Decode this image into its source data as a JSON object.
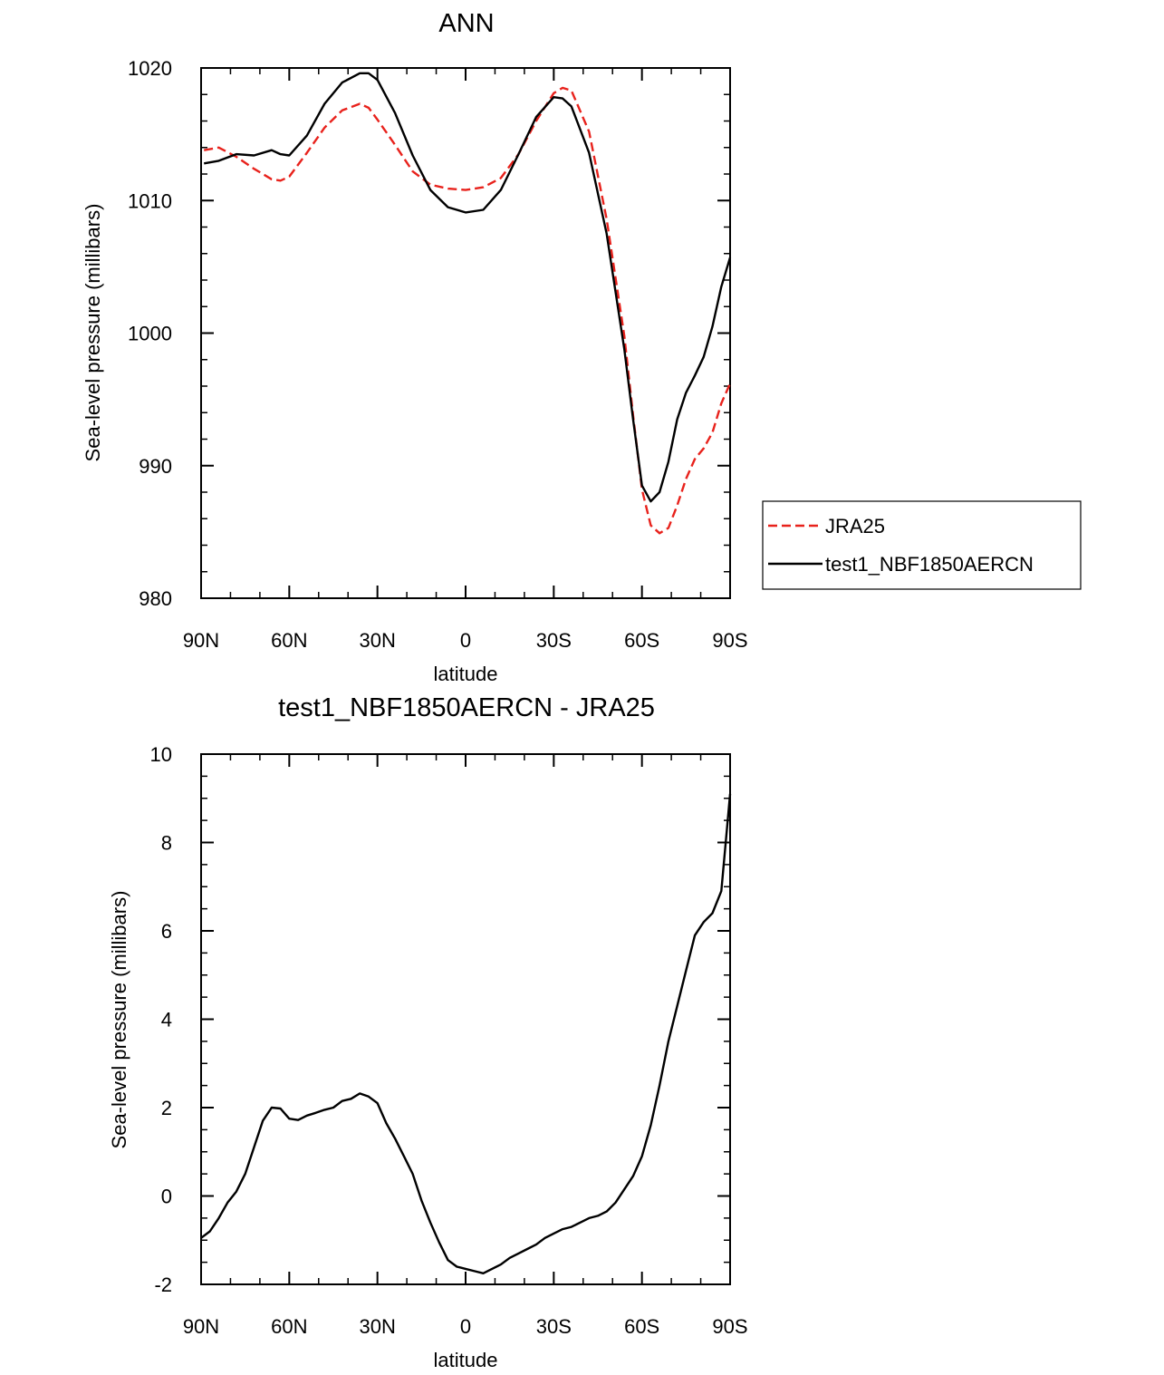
{
  "colors": {
    "jra": "#e8221c",
    "model": "#000000",
    "background": "#ffffff"
  },
  "chart_data": [
    {
      "type": "line",
      "title": "ANN",
      "xlabel": "latitude",
      "ylabel": "Sea-level pressure (millibars)",
      "xlim": [
        90,
        -90
      ],
      "ylim": [
        980,
        1020
      ],
      "x_ticks": [
        90,
        60,
        30,
        0,
        -30,
        -60,
        -90
      ],
      "x_tick_labels": [
        "90N",
        "60N",
        "30N",
        "0",
        "30S",
        "60S",
        "90S"
      ],
      "y_ticks": [
        980,
        990,
        1000,
        1010,
        1020
      ],
      "y_tick_labels": [
        "980",
        "990",
        "1000",
        "1010",
        "1020"
      ],
      "legend": {
        "position": "right",
        "entries": [
          "JRA25",
          "test1_NBF1850AERCN"
        ]
      },
      "series": [
        {
          "name": "JRA25",
          "style": "dashed",
          "color": "#e8221c",
          "x": [
            89,
            84,
            78,
            72,
            66,
            63,
            60,
            54,
            48,
            42,
            36,
            33,
            30,
            24,
            18,
            12,
            6,
            0,
            -6,
            -12,
            -18,
            -24,
            -30,
            -33,
            -36,
            -42,
            -48,
            -54,
            -57,
            -60,
            -63,
            -66,
            -69,
            -72,
            -75,
            -78,
            -81,
            -84,
            -87,
            -90
          ],
          "values": [
            1013.8,
            1014.0,
            1013.3,
            1012.4,
            1011.6,
            1011.5,
            1011.8,
            1013.6,
            1015.5,
            1016.8,
            1017.3,
            1017.0,
            1016.1,
            1014.2,
            1012.2,
            1011.2,
            1010.9,
            1010.8,
            1011.0,
            1011.7,
            1013.5,
            1016.0,
            1018.1,
            1018.5,
            1018.3,
            1015.2,
            1008.6,
            999.8,
            993.8,
            988.2,
            985.5,
            984.9,
            985.3,
            987.0,
            989.0,
            990.5,
            991.3,
            992.5,
            994.7,
            996.2
          ]
        },
        {
          "name": "test1_NBF1850AERCN",
          "style": "solid",
          "color": "#000000",
          "x": [
            89,
            84,
            78,
            72,
            66,
            63,
            60,
            54,
            48,
            42,
            36,
            33,
            30,
            24,
            18,
            12,
            6,
            0,
            -6,
            -12,
            -18,
            -24,
            -30,
            -33,
            -36,
            -42,
            -48,
            -54,
            -57,
            -60,
            -63,
            -66,
            -69,
            -72,
            -75,
            -78,
            -81,
            -84,
            -87,
            -90
          ],
          "values": [
            1012.8,
            1013.0,
            1013.5,
            1013.4,
            1013.8,
            1013.5,
            1013.4,
            1014.9,
            1017.3,
            1018.9,
            1019.6,
            1019.6,
            1019.1,
            1016.6,
            1013.4,
            1010.8,
            1009.5,
            1009.1,
            1009.3,
            1010.8,
            1013.5,
            1016.3,
            1017.8,
            1017.7,
            1017.1,
            1013.6,
            1007.5,
            998.8,
            993.5,
            988.5,
            987.3,
            988.0,
            990.3,
            993.5,
            995.5,
            996.8,
            998.2,
            1000.5,
            1003.5,
            1005.7
          ]
        }
      ]
    },
    {
      "type": "line",
      "title": "test1_NBF1850AERCN - JRA25",
      "xlabel": "latitude",
      "ylabel": "Sea-level pressure (millibars)",
      "xlim": [
        90,
        -90
      ],
      "ylim": [
        -2,
        10
      ],
      "x_ticks": [
        90,
        60,
        30,
        0,
        -30,
        -60,
        -90
      ],
      "x_tick_labels": [
        "90N",
        "60N",
        "30N",
        "0",
        "30S",
        "60S",
        "90S"
      ],
      "y_ticks": [
        -2,
        0,
        2,
        4,
        6,
        8,
        10
      ],
      "y_tick_labels": [
        "-2",
        "0",
        "2",
        "4",
        "6",
        "8",
        "10"
      ],
      "series": [
        {
          "name": "test1_NBF1850AERCN - JRA25",
          "style": "solid",
          "color": "#000000",
          "x": [
            90,
            87,
            84,
            81,
            78,
            75,
            72,
            69,
            66,
            63,
            60,
            57,
            54,
            51,
            48,
            45,
            42,
            39,
            36,
            33,
            30,
            27,
            24,
            21,
            18,
            15,
            12,
            9,
            6,
            3,
            0,
            -3,
            -6,
            -9,
            -12,
            -15,
            -18,
            -21,
            -24,
            -27,
            -30,
            -33,
            -36,
            -39,
            -42,
            -45,
            -48,
            -51,
            -54,
            -57,
            -60,
            -63,
            -66,
            -69,
            -72,
            -75,
            -78,
            -81,
            -84,
            -87,
            -90
          ],
          "values": [
            -0.95,
            -0.8,
            -0.5,
            -0.15,
            0.1,
            0.5,
            1.1,
            1.7,
            2.0,
            1.98,
            1.75,
            1.72,
            1.82,
            1.88,
            1.95,
            2.0,
            2.15,
            2.2,
            2.32,
            2.25,
            2.1,
            1.65,
            1.3,
            0.9,
            0.5,
            -0.1,
            -0.6,
            -1.05,
            -1.45,
            -1.6,
            -1.65,
            -1.7,
            -1.75,
            -1.65,
            -1.55,
            -1.4,
            -1.3,
            -1.2,
            -1.1,
            -0.95,
            -0.85,
            -0.75,
            -0.7,
            -0.6,
            -0.5,
            -0.45,
            -0.35,
            -0.15,
            0.15,
            0.45,
            0.9,
            1.6,
            2.5,
            3.5,
            4.3,
            5.1,
            5.9,
            6.2,
            6.4,
            6.9,
            9.1
          ]
        }
      ]
    }
  ]
}
